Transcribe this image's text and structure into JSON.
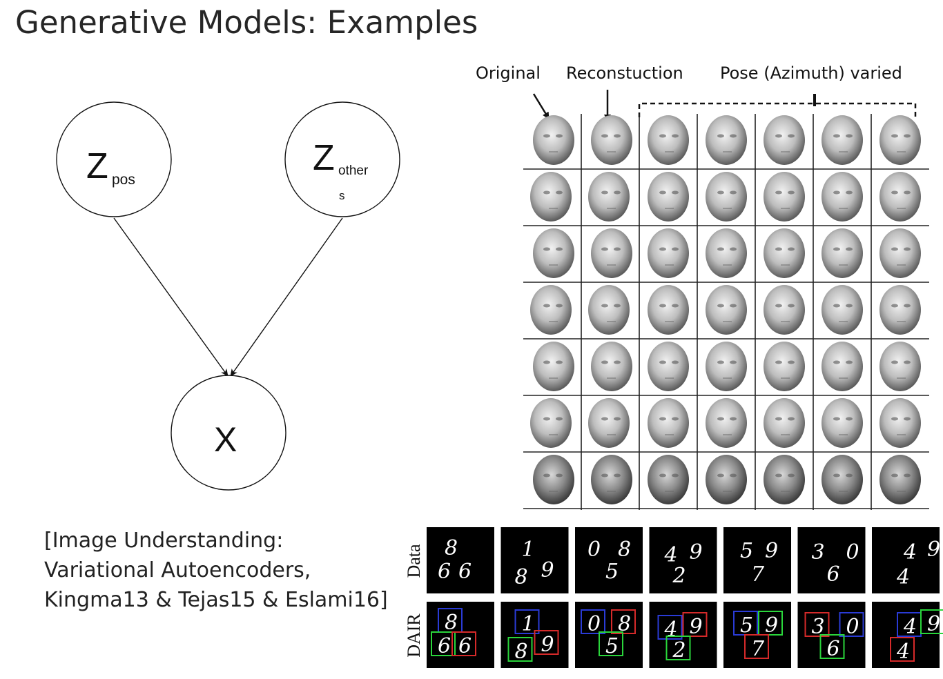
{
  "slide": {
    "title": "Generative Models: Examples"
  },
  "graph": {
    "nodes": [
      {
        "id": "z_pos",
        "symbol": "Z",
        "subscript": "pos"
      },
      {
        "id": "z_others",
        "symbol": "Z",
        "subscript_line1": "other",
        "subscript_line2": "s"
      },
      {
        "id": "x",
        "symbol": "X"
      }
    ],
    "edges": [
      {
        "from": "z_pos",
        "to": "x"
      },
      {
        "from": "z_others",
        "to": "x"
      }
    ]
  },
  "caption": {
    "line1": "[Image Understanding:",
    "line2": "Variational Autoencoders,",
    "line3": "Kingma13 & Tejas15 & Eslami16]"
  },
  "faces_figure": {
    "col_labels": {
      "original": "Original",
      "reconstruction": "Reconstuction",
      "pose_varied": "Pose (Azimuth) varied"
    },
    "rows": 7,
    "cols": 7
  },
  "digits_figure": {
    "row_labels": {
      "data": "Data",
      "dair": "DAIR"
    },
    "samples": [
      {
        "digits": [
          "8",
          "6",
          "6"
        ]
      },
      {
        "digits": [
          "1",
          "8",
          "9"
        ]
      },
      {
        "digits": [
          "0",
          "8",
          "5"
        ]
      },
      {
        "digits": [
          "4",
          "9",
          "2"
        ]
      },
      {
        "digits": [
          "5",
          "9",
          "7"
        ]
      },
      {
        "digits": [
          "3",
          "0",
          "6"
        ]
      },
      {
        "digits": [
          "4",
          "9",
          "4"
        ]
      }
    ],
    "box_colors": {
      "blue": "#2a3bd6",
      "red": "#d62a2a",
      "green": "#2ad63b"
    }
  }
}
